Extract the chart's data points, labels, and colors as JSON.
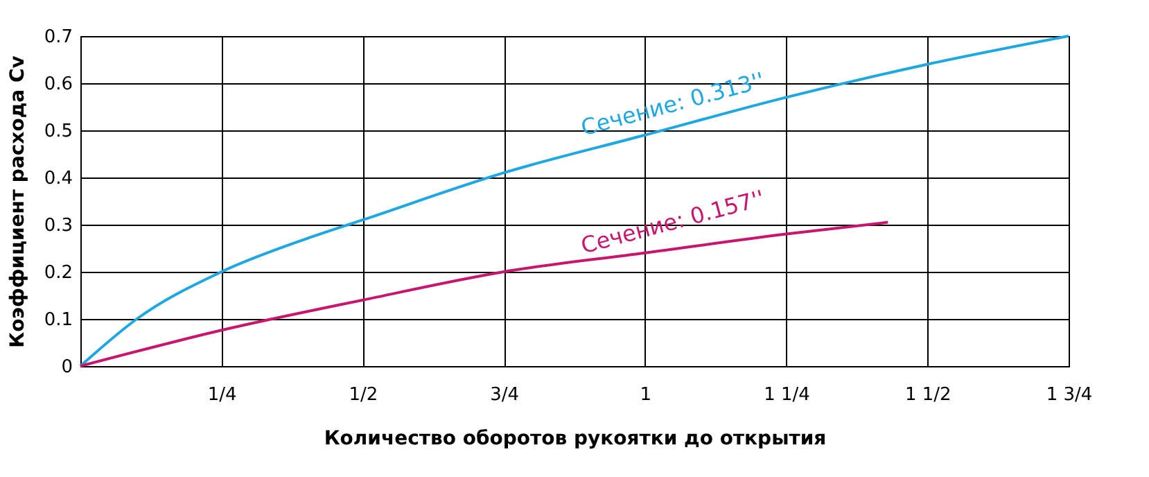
{
  "chart_data": {
    "type": "line",
    "xlabel": "Количество оборотов рукоятки до открытия",
    "ylabel": "Коэффициент расхода Cv",
    "xlim": [
      0,
      1.75
    ],
    "ylim": [
      0,
      0.7
    ],
    "xticks": [
      {
        "value": 0,
        "label": null
      },
      {
        "value": 0.25,
        "label": "1/4"
      },
      {
        "value": 0.5,
        "label": "1/2"
      },
      {
        "value": 0.75,
        "label": "3/4"
      },
      {
        "value": 1,
        "label": "1"
      },
      {
        "value": 1.25,
        "label": "1 1/4"
      },
      {
        "value": 1.5,
        "label": "1 1/2"
      },
      {
        "value": 1.75,
        "label": "1 3/4"
      }
    ],
    "yticks": [
      0,
      0.1,
      0.2,
      0.3,
      0.4,
      0.5,
      0.6,
      0.7
    ],
    "grid": true,
    "legend": false,
    "series": [
      {
        "name": "Сечение: 0.313''",
        "color": "#1ea7e1",
        "x": [
          0,
          0.1,
          0.25,
          0.4,
          0.5,
          0.75,
          1,
          1.25,
          1.5,
          1.75
        ],
        "values": [
          0,
          0.1,
          0.2,
          0.27,
          0.31,
          0.41,
          0.49,
          0.57,
          0.64,
          0.7
        ]
      },
      {
        "name": "Сечение: 0.157''",
        "color": "#c8166e",
        "x": [
          0,
          0.25,
          0.5,
          0.75,
          1,
          1.25,
          1.43
        ],
        "values": [
          0,
          0.076,
          0.14,
          0.2,
          0.24,
          0.28,
          0.305
        ]
      }
    ]
  }
}
